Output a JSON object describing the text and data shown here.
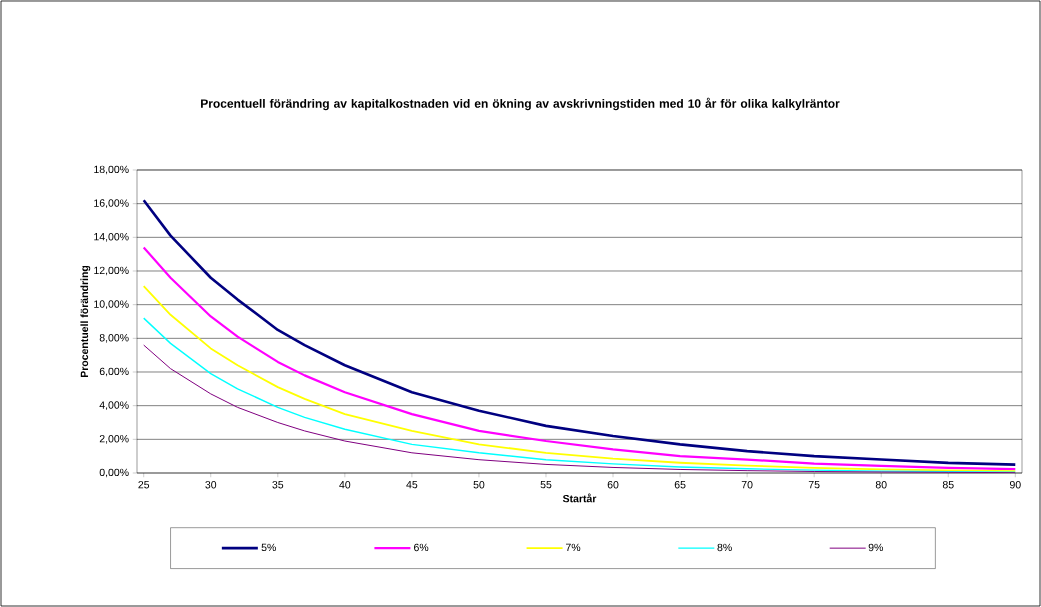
{
  "chart_data": {
    "type": "line",
    "title": "Procentuell förändring av kapitalkostnaden vid en ökning av avskrivningstiden med 10 år för olika kalkylräntor",
    "xlabel": "Startår",
    "ylabel": "Procentuell förändring",
    "x": [
      25,
      27,
      30,
      32,
      35,
      37,
      40,
      45,
      50,
      55,
      60,
      65,
      70,
      75,
      80,
      85,
      90
    ],
    "xlim": [
      24.5,
      90.5
    ],
    "xticks": [
      25,
      30,
      35,
      40,
      45,
      50,
      55,
      60,
      65,
      70,
      75,
      80,
      85,
      90
    ],
    "ylim": [
      0,
      18
    ],
    "yticks": [
      {
        "value": 0,
        "label": "0,00%"
      },
      {
        "value": 2,
        "label": "2,00%"
      },
      {
        "value": 4,
        "label": "4,00%"
      },
      {
        "value": 6,
        "label": "6,00%"
      },
      {
        "value": 8,
        "label": "8,00%"
      },
      {
        "value": 10,
        "label": "10,00%"
      },
      {
        "value": 12,
        "label": "12,00%"
      },
      {
        "value": 14,
        "label": "14,00%"
      },
      {
        "value": 16,
        "label": "16,00%"
      },
      {
        "value": 18,
        "label": "18,00%"
      }
    ],
    "grid": "y",
    "legend": "bottom",
    "marker": "none",
    "line_style": "solid",
    "series": [
      {
        "name": "5%",
        "color": "#000080",
        "values": [
          16.2,
          14.1,
          11.6,
          10.3,
          8.5,
          7.6,
          6.4,
          4.8,
          3.7,
          2.8,
          2.2,
          1.7,
          1.3,
          1.0,
          0.8,
          0.6,
          0.5
        ]
      },
      {
        "name": "6%",
        "color": "#ff00ff",
        "values": [
          13.4,
          11.6,
          9.3,
          8.1,
          6.6,
          5.8,
          4.8,
          3.5,
          2.5,
          1.9,
          1.4,
          1.0,
          0.8,
          0.56,
          0.42,
          0.31,
          0.23
        ]
      },
      {
        "name": "7%",
        "color": "#ffff00",
        "values": [
          11.1,
          9.4,
          7.4,
          6.4,
          5.1,
          4.4,
          3.5,
          2.5,
          1.7,
          1.2,
          0.86,
          0.61,
          0.44,
          0.31,
          0.22,
          0.16,
          0.11
        ]
      },
      {
        "name": "8%",
        "color": "#00ffff",
        "values": [
          9.2,
          7.7,
          5.9,
          5.0,
          3.9,
          3.3,
          2.6,
          1.7,
          1.2,
          0.79,
          0.54,
          0.36,
          0.25,
          0.17,
          0.11,
          0.08,
          0.05
        ]
      },
      {
        "name": "9%",
        "color": "#800080",
        "values": [
          7.6,
          6.2,
          4.7,
          3.9,
          3.0,
          2.5,
          1.9,
          1.2,
          0.79,
          0.51,
          0.33,
          0.21,
          0.14,
          0.09,
          0.06,
          0.04,
          0.02
        ]
      }
    ]
  }
}
